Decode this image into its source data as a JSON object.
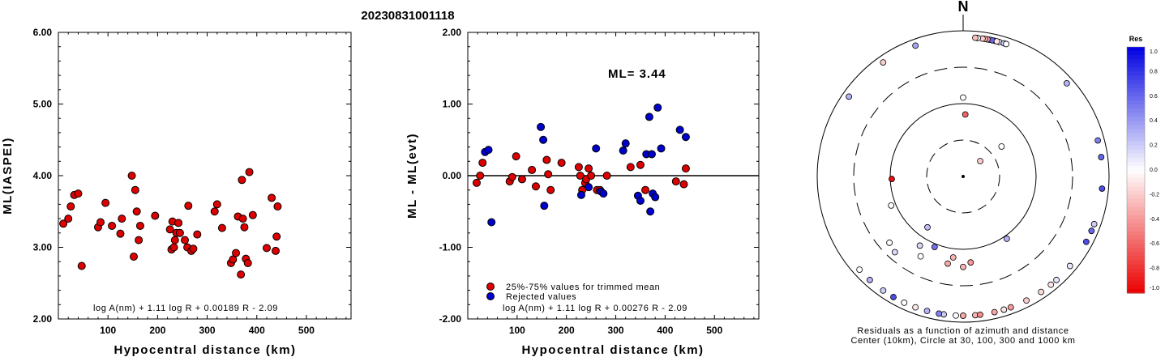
{
  "title": "20230831001118",
  "chart_data": [
    {
      "type": "scatter",
      "ylabel": "ML(IASPEI)",
      "xlabel": "Hypocentral distance (km)",
      "xlim": [
        0,
        590
      ],
      "ylim": [
        2.0,
        6.0
      ],
      "x_ticks": [
        100,
        200,
        300,
        400,
        500
      ],
      "y_ticks": [
        "2.00",
        "3.00",
        "4.00",
        "5.00",
        "6.00"
      ],
      "formula": "log A(nm) + 1.11 log R + 0.00189 R - 2.09",
      "series": [
        {
          "color": "#dd0000",
          "points": [
            [
              10,
              3.33
            ],
            [
              20,
              3.4
            ],
            [
              25,
              3.57
            ],
            [
              32,
              3.73
            ],
            [
              40,
              3.75
            ],
            [
              47,
              2.74
            ],
            [
              80,
              3.28
            ],
            [
              85,
              3.35
            ],
            [
              95,
              3.62
            ],
            [
              108,
              3.3
            ],
            [
              125,
              3.19
            ],
            [
              128,
              3.4
            ],
            [
              148,
              4.0
            ],
            [
              152,
              2.87
            ],
            [
              155,
              3.8
            ],
            [
              158,
              3.5
            ],
            [
              162,
              3.1
            ],
            [
              165,
              3.3
            ],
            [
              195,
              3.44
            ],
            [
              225,
              3.25
            ],
            [
              228,
              2.97
            ],
            [
              230,
              3.36
            ],
            [
              233,
              3.0
            ],
            [
              235,
              3.1
            ],
            [
              238,
              3.2
            ],
            [
              242,
              3.34
            ],
            [
              245,
              3.2
            ],
            [
              255,
              3.1
            ],
            [
              260,
              3.0
            ],
            [
              262,
              3.58
            ],
            [
              268,
              2.95
            ],
            [
              272,
              2.98
            ],
            [
              280,
              3.18
            ],
            [
              315,
              3.5
            ],
            [
              320,
              3.6
            ],
            [
              330,
              3.27
            ],
            [
              348,
              2.78
            ],
            [
              352,
              2.83
            ],
            [
              358,
              2.92
            ],
            [
              362,
              3.43
            ],
            [
              368,
              2.62
            ],
            [
              370,
              3.94
            ],
            [
              372,
              3.4
            ],
            [
              375,
              3.28
            ],
            [
              378,
              2.84
            ],
            [
              382,
              2.78
            ],
            [
              385,
              4.05
            ],
            [
              392,
              3.45
            ],
            [
              420,
              2.99
            ],
            [
              430,
              3.69
            ],
            [
              438,
              2.95
            ],
            [
              440,
              3.15
            ],
            [
              442,
              3.57
            ]
          ]
        }
      ]
    },
    {
      "type": "scatter",
      "ylabel": "ML - ML(evt)",
      "xlabel": "Hypocentral distance (km)",
      "xlim": [
        0,
        590
      ],
      "ylim": [
        -2.0,
        2.0
      ],
      "x_ticks": [
        100,
        200,
        300,
        400,
        500
      ],
      "y_ticks": [
        "-2.00",
        "-1.00",
        "0.00",
        "1.00",
        "2.00"
      ],
      "ml_label": "ML= 3.44",
      "formula": "log A(nm) + 1.11 log R + 0.00276 R - 2.09",
      "series": [
        {
          "name": "25%-75% values for trimmed mean",
          "color": "#dd0000",
          "points": [
            [
              18,
              -0.1
            ],
            [
              25,
              0.0
            ],
            [
              30,
              0.18
            ],
            [
              85,
              -0.08
            ],
            [
              90,
              -0.02
            ],
            [
              98,
              0.27
            ],
            [
              110,
              -0.05
            ],
            [
              130,
              0.08
            ],
            [
              138,
              -0.15
            ],
            [
              160,
              0.22
            ],
            [
              163,
              0.02
            ],
            [
              168,
              -0.2
            ],
            [
              190,
              0.18
            ],
            [
              225,
              0.12
            ],
            [
              228,
              0.0
            ],
            [
              232,
              -0.2
            ],
            [
              238,
              -0.1
            ],
            [
              240,
              -0.05
            ],
            [
              245,
              0.1
            ],
            [
              250,
              0.0
            ],
            [
              262,
              -0.2
            ],
            [
              268,
              -0.2
            ],
            [
              282,
              0.0
            ],
            [
              330,
              0.12
            ],
            [
              350,
              0.15
            ],
            [
              360,
              -0.2
            ],
            [
              422,
              -0.08
            ],
            [
              438,
              -0.12
            ],
            [
              442,
              0.1
            ]
          ]
        },
        {
          "name": "Rejected values",
          "color": "#0000cc",
          "points": [
            [
              35,
              0.33
            ],
            [
              42,
              0.36
            ],
            [
              48,
              -0.65
            ],
            [
              148,
              0.68
            ],
            [
              153,
              0.5
            ],
            [
              155,
              -0.42
            ],
            [
              230,
              -0.27
            ],
            [
              245,
              -0.16
            ],
            [
              260,
              0.38
            ],
            [
              270,
              -0.22
            ],
            [
              275,
              -0.25
            ],
            [
              315,
              0.35
            ],
            [
              320,
              0.45
            ],
            [
              345,
              -0.28
            ],
            [
              350,
              -0.35
            ],
            [
              362,
              0.3
            ],
            [
              368,
              0.82
            ],
            [
              370,
              -0.5
            ],
            [
              373,
              0.3
            ],
            [
              375,
              -0.25
            ],
            [
              380,
              -0.3
            ],
            [
              385,
              0.95
            ],
            [
              392,
              0.38
            ],
            [
              430,
              0.64
            ],
            [
              442,
              0.54
            ]
          ]
        }
      ],
      "legend_placement": "bottom-left"
    },
    {
      "type": "scatter",
      "polar": true,
      "north_label": "N",
      "caption_line1": "Residuals as a function of azimuth and distance",
      "caption_line2": "Center (10km), Circle at 30, 100, 300 and 1000 km",
      "colorbar_title": "Res",
      "colorbar_ticks": [
        "1.0",
        "0.8",
        "0.6",
        "0.4",
        "0.2",
        "0.0",
        "-0.2",
        "-0.4",
        "-0.6",
        "-0.8",
        "-1.0"
      ],
      "colorbar_range": [
        -1.0,
        1.0
      ],
      "stations": [
        {
          "az": 11,
          "dist": 920,
          "res": 0.05
        },
        {
          "az": 13,
          "dist": 960,
          "res": 0.3
        },
        {
          "az": 12,
          "dist": 1000,
          "res": 0.6
        },
        {
          "az": 10,
          "dist": 960,
          "res": -0.35
        },
        {
          "az": 9,
          "dist": 930,
          "res": -0.3
        },
        {
          "az": 15,
          "dist": 940,
          "res": 0.1
        },
        {
          "az": 8,
          "dist": 900,
          "res": -0.2
        },
        {
          "az": 17,
          "dist": 900,
          "res": 0.2
        },
        {
          "az": 6,
          "dist": 860,
          "res": 0.0
        },
        {
          "az": 18,
          "dist": 980,
          "res": 0.0
        },
        {
          "az": 5,
          "dist": 1000,
          "res": -0.25
        },
        {
          "az": 14,
          "dist": 880,
          "res": -0.1
        },
        {
          "az": 340,
          "dist": 950,
          "res": 0.35
        },
        {
          "az": 325,
          "dist": 900,
          "res": -0.2
        },
        {
          "az": 305,
          "dist": 1100,
          "res": 0.3
        },
        {
          "az": 48,
          "dist": 920,
          "res": 0.3
        },
        {
          "az": 75,
          "dist": 880,
          "res": 0.5
        },
        {
          "az": 82,
          "dist": 820,
          "res": 0.6
        },
        {
          "az": 95,
          "dist": 1120,
          "res": 0.7
        },
        {
          "az": 110,
          "dist": 1000,
          "res": 0.2
        },
        {
          "az": 113,
          "dist": 1150,
          "res": 0.6
        },
        {
          "az": 118,
          "dist": 1300,
          "res": 0.7
        },
        {
          "az": 130,
          "dist": 1050,
          "res": 0.1
        },
        {
          "az": 138,
          "dist": 1200,
          "res": 0.1
        },
        {
          "az": 160,
          "dist": 1000,
          "res": -0.4
        },
        {
          "az": 163,
          "dist": 1000,
          "res": -0.3
        },
        {
          "az": 167,
          "dist": 1000,
          "res": -0.35
        },
        {
          "az": 175,
          "dist": 1100,
          "res": -0.3
        },
        {
          "az": 180,
          "dist": 1150,
          "res": -0.4
        },
        {
          "az": 183,
          "dist": 1150,
          "res": 0.0
        },
        {
          "az": 188,
          "dist": 1050,
          "res": 0.2
        },
        {
          "az": 190,
          "dist": 1000,
          "res": 0.5
        },
        {
          "az": 195,
          "dist": 1050,
          "res": 0.3
        },
        {
          "az": 200,
          "dist": 1050,
          "res": -0.1
        },
        {
          "az": 205,
          "dist": 1100,
          "res": 0.0
        },
        {
          "az": 210,
          "dist": 1150,
          "res": 0.7
        },
        {
          "az": 215,
          "dist": 960,
          "res": 0.2
        },
        {
          "az": 222,
          "dist": 1000,
          "res": 0.3
        },
        {
          "az": 228,
          "dist": 880,
          "res": 0.0
        },
        {
          "az": 180,
          "dist": 980,
          "res": -0.35
        },
        {
          "az": 173,
          "dist": 1000,
          "res": -0.45
        },
        {
          "az": 163,
          "dist": 920,
          "res": -0.1
        },
        {
          "az": 153,
          "dist": 1000,
          "res": -0.2
        },
        {
          "az": 146,
          "dist": 1000,
          "res": -0.15
        },
        {
          "az": 141,
          "dist": 940,
          "res": -0.1
        },
        {
          "az": 0,
          "dist": 120,
          "res": 0.0
        },
        {
          "az": 2,
          "dist": 70,
          "res": -0.6
        },
        {
          "az": 52,
          "dist": 45,
          "res": 0.0
        },
        {
          "az": 48,
          "dist": 20,
          "res": -0.2
        },
        {
          "az": 268,
          "dist": 95,
          "res": -0.95
        },
        {
          "az": 248,
          "dist": 115,
          "res": 0.0
        },
        {
          "az": 215,
          "dist": 70,
          "res": 0.25
        },
        {
          "az": 202,
          "dist": 110,
          "res": 0.55
        },
        {
          "az": 212,
          "dist": 130,
          "res": 0.15
        },
        {
          "az": 187,
          "dist": 130,
          "res": -0.3
        },
        {
          "az": 175,
          "dist": 150,
          "res": -0.4
        },
        {
          "az": 145,
          "dist": 110,
          "res": 0.3
        },
        {
          "az": 228,
          "dist": 220,
          "res": 0.0
        },
        {
          "az": 222,
          "dist": 240,
          "res": 0.15
        },
        {
          "az": 208,
          "dist": 170,
          "res": 0.0
        },
        {
          "az": 190,
          "dist": 160,
          "res": -0.35
        },
        {
          "az": 180,
          "dist": 170,
          "res": -0.3
        }
      ]
    }
  ]
}
